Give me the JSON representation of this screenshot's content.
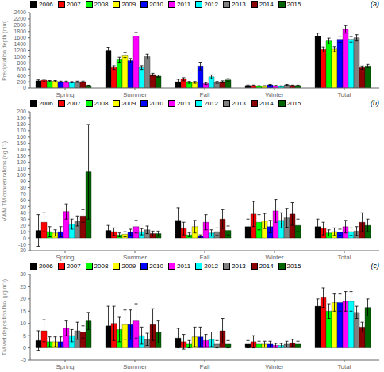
{
  "chart_data": [
    {
      "type": "bar",
      "y_label": "Precipitation depth (mm)",
      "annotation": "(a)",
      "legend": "upper left",
      "grid": false,
      "categories": [
        "Spring",
        "Summer",
        "Fall",
        "Winter",
        "Total"
      ],
      "ylim": [
        0,
        2400
      ],
      "yticks": [
        0,
        200,
        400,
        600,
        800,
        1000,
        1200,
        1400,
        1600,
        1800,
        2000,
        2200,
        2400
      ],
      "series": [
        {
          "name": "2006",
          "color": "black",
          "values": [
            230,
            1200,
            200,
            80,
            1650
          ],
          "errors": [
            30,
            100,
            80,
            15,
            100
          ]
        },
        {
          "name": "2007",
          "color": "red",
          "values": [
            250,
            650,
            280,
            80,
            1230
          ],
          "errors": [
            30,
            60,
            50,
            15,
            80
          ]
        },
        {
          "name": "2008",
          "color": "lime",
          "values": [
            220,
            900,
            180,
            65,
            1500
          ],
          "errors": [
            20,
            80,
            30,
            10,
            90
          ]
        },
        {
          "name": "2009",
          "color": "yellow",
          "values": [
            220,
            1050,
            180,
            65,
            1240
          ],
          "errors": [
            20,
            80,
            30,
            10,
            80
          ]
        },
        {
          "name": "2010",
          "color": "blue",
          "values": [
            200,
            870,
            700,
            100,
            1550
          ],
          "errors": [
            20,
            70,
            120,
            15,
            100
          ]
        },
        {
          "name": "2011",
          "color": "magenta",
          "values": [
            200,
            1650,
            140,
            70,
            1870
          ],
          "errors": [
            20,
            120,
            30,
            12,
            120
          ]
        },
        {
          "name": "2012",
          "color": "cyan",
          "values": [
            185,
            650,
            360,
            60,
            1550
          ],
          "errors": [
            20,
            60,
            60,
            10,
            90
          ]
        },
        {
          "name": "2013",
          "color": "gray",
          "values": [
            200,
            1000,
            180,
            100,
            1600
          ],
          "errors": [
            20,
            80,
            30,
            15,
            100
          ]
        },
        {
          "name": "2014",
          "color": "darkred",
          "values": [
            200,
            430,
            200,
            80,
            650
          ],
          "errors": [
            20,
            40,
            30,
            12,
            50
          ]
        },
        {
          "name": "2015",
          "color": "darkgreen",
          "values": [
            80,
            380,
            260,
            80,
            700
          ],
          "errors": [
            10,
            35,
            40,
            12,
            50
          ]
        }
      ]
    },
    {
      "type": "bar",
      "y_label": "VWM TM concentrations (ng L⁻¹)",
      "annotation": "(b)",
      "legend": "upper left",
      "grid": false,
      "categories": [
        "Spring",
        "Summer",
        "Fall",
        "Winter",
        "Total"
      ],
      "ylim": [
        -20,
        200
      ],
      "yticks": [
        -20,
        -10,
        0,
        10,
        20,
        30,
        40,
        50,
        60,
        70,
        80,
        90,
        100,
        110,
        120,
        130,
        140,
        150,
        160,
        170,
        180,
        190,
        200
      ],
      "series": [
        {
          "name": "2006",
          "color": "black",
          "values": [
            12,
            12,
            28,
            18,
            18
          ],
          "errors": [
            25,
            8,
            20,
            12,
            12
          ]
        },
        {
          "name": "2007",
          "color": "red",
          "values": [
            25,
            10,
            15,
            38,
            15
          ],
          "errors": [
            15,
            6,
            10,
            20,
            10
          ]
        },
        {
          "name": "2008",
          "color": "lime",
          "values": [
            10,
            5,
            5,
            25,
            8
          ],
          "errors": [
            8,
            3,
            3,
            12,
            5
          ]
        },
        {
          "name": "2009",
          "color": "yellow",
          "values": [
            8,
            6,
            18,
            27,
            10
          ],
          "errors": [
            5,
            4,
            10,
            12,
            6
          ]
        },
        {
          "name": "2010",
          "color": "blue",
          "values": [
            10,
            9,
            3,
            18,
            9
          ],
          "errors": [
            8,
            5,
            2,
            10,
            5
          ]
        },
        {
          "name": "2011",
          "color": "magenta",
          "values": [
            42,
            18,
            25,
            43,
            18
          ],
          "errors": [
            12,
            10,
            12,
            18,
            10
          ]
        },
        {
          "name": "2012",
          "color": "cyan",
          "values": [
            22,
            10,
            8,
            28,
            10
          ],
          "errors": [
            8,
            5,
            5,
            12,
            6
          ]
        },
        {
          "name": "2013",
          "color": "gray",
          "values": [
            27,
            13,
            10,
            32,
            11
          ],
          "errors": [
            8,
            6,
            6,
            15,
            7
          ]
        },
        {
          "name": "2014",
          "color": "darkred",
          "values": [
            35,
            7,
            30,
            38,
            25
          ],
          "errors": [
            10,
            4,
            15,
            18,
            15
          ]
        },
        {
          "name": "2015",
          "color": "darkgreen",
          "values": [
            105,
            7,
            12,
            20,
            20
          ],
          "errors": [
            75,
            4,
            7,
            10,
            10
          ]
        }
      ]
    },
    {
      "type": "bar",
      "y_label": "TM wet deposition flux (µg m⁻²)",
      "annotation": "(c)",
      "legend": "upper left",
      "grid": false,
      "categories": [
        "Spring",
        "Summer",
        "Fall",
        "Winter",
        "Total"
      ],
      "ylim": [
        -5,
        30
      ],
      "yticks": [
        -5,
        0,
        5,
        10,
        15,
        20,
        25,
        30
      ],
      "series": [
        {
          "name": "2006",
          "color": "black",
          "values": [
            3.0,
            9.0,
            4.0,
            1.5,
            17.0
          ],
          "errors": [
            4.0,
            8.0,
            4.0,
            1.5,
            3.0
          ]
        },
        {
          "name": "2007",
          "color": "red",
          "values": [
            7.0,
            10.0,
            2.5,
            2.5,
            20.5
          ],
          "errors": [
            4.5,
            7.0,
            3.0,
            2.5,
            4.0
          ]
        },
        {
          "name": "2008",
          "color": "lime",
          "values": [
            2.5,
            7.5,
            1.5,
            1.5,
            15.0
          ],
          "errors": [
            2.0,
            5.0,
            1.5,
            1.2,
            3.0
          ]
        },
        {
          "name": "2009",
          "color": "yellow",
          "values": [
            2.5,
            9.5,
            4.5,
            1.5,
            18.5
          ],
          "errors": [
            2.0,
            6.0,
            4.0,
            1.2,
            3.5
          ]
        },
        {
          "name": "2010",
          "color": "blue",
          "values": [
            2.5,
            9.5,
            4.5,
            1.5,
            18.5
          ],
          "errors": [
            2.0,
            6.0,
            4.0,
            1.2,
            3.5
          ]
        },
        {
          "name": "2011",
          "color": "magenta",
          "values": [
            8.0,
            11.0,
            3.0,
            1.0,
            19.0
          ],
          "errors": [
            3.0,
            7.0,
            2.5,
            0.8,
            4.0
          ]
        },
        {
          "name": "2012",
          "color": "cyan",
          "values": [
            5.0,
            5.0,
            3.5,
            1.0,
            19.0
          ],
          "errors": [
            2.5,
            3.5,
            3.0,
            0.8,
            4.0
          ]
        },
        {
          "name": "2013",
          "color": "gray",
          "values": [
            7.0,
            3.5,
            1.5,
            1.5,
            14.5
          ],
          "errors": [
            3.5,
            2.5,
            1.5,
            1.2,
            2.5
          ]
        },
        {
          "name": "2014",
          "color": "darkred",
          "values": [
            6.5,
            9.5,
            7.0,
            2.0,
            8.5
          ],
          "errors": [
            2.5,
            6.5,
            5.0,
            1.5,
            2.0
          ]
        },
        {
          "name": "2015",
          "color": "darkgreen",
          "values": [
            11.0,
            6.5,
            1.5,
            1.5,
            16.5
          ],
          "errors": [
            3.5,
            4.5,
            1.5,
            1.2,
            3.5
          ]
        }
      ]
    }
  ]
}
